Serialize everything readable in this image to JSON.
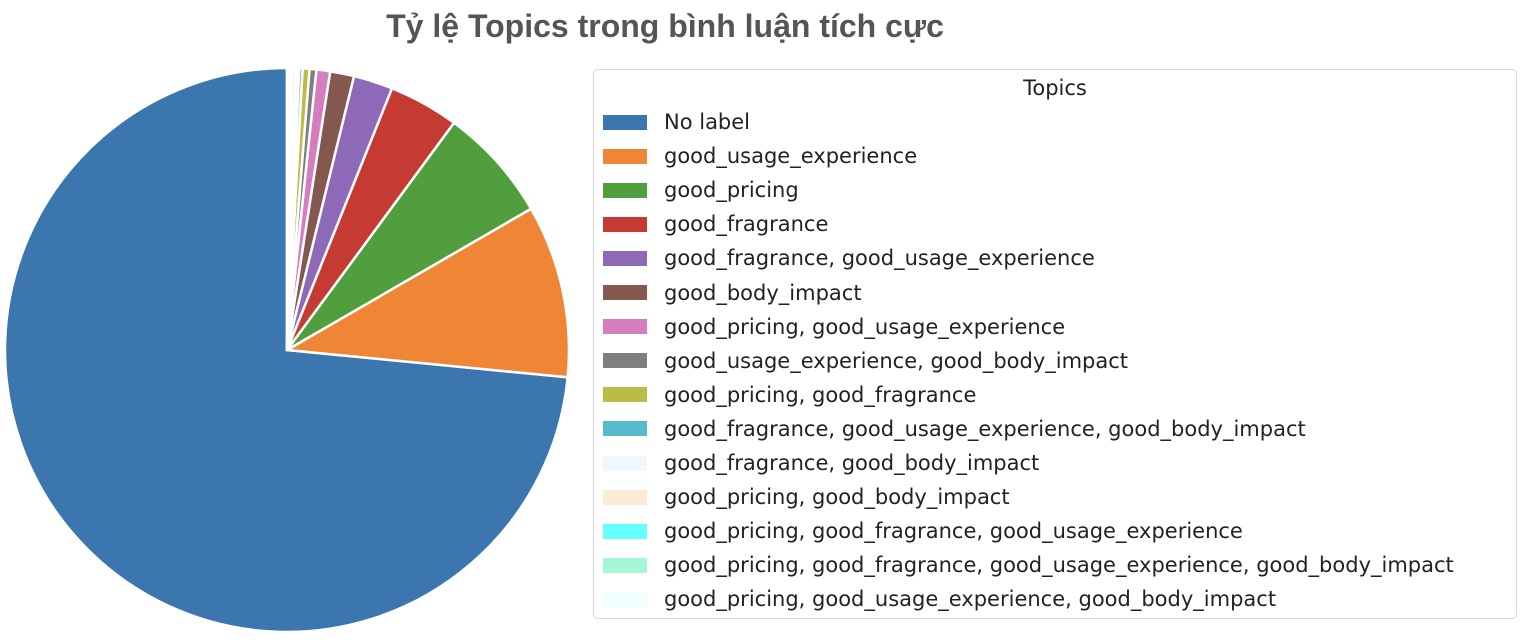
{
  "chart_data": {
    "type": "pie",
    "title": "Tỷ lệ Topics trong bình luận tích cực",
    "legend_title": "Topics",
    "legend_position": "right",
    "start_angle_deg": 90,
    "direction": "counterclockwise",
    "slices": [
      {
        "label": "No label",
        "value": 75.0,
        "color": "#3b76af"
      },
      {
        "label": "good_usage_experience",
        "value": 10.1,
        "color": "#ef8636"
      },
      {
        "label": "good_pricing",
        "value": 6.7,
        "color": "#519e3e"
      },
      {
        "label": "good_fragrance",
        "value": 4.1,
        "color": "#c53a32"
      },
      {
        "label": "good_fragrance, good_usage_experience",
        "value": 2.3,
        "color": "#8d69b8"
      },
      {
        "label": "good_body_impact",
        "value": 1.4,
        "color": "#84584e"
      },
      {
        "label": "good_pricing, good_usage_experience",
        "value": 0.8,
        "color": "#d57dbe"
      },
      {
        "label": "good_usage_experience, good_body_impact",
        "value": 0.4,
        "color": "#7f7f7f"
      },
      {
        "label": "good_pricing, good_fragrance",
        "value": 0.4,
        "color": "#bcbc45"
      },
      {
        "label": "good_fragrance, good_usage_experience, good_body_impact",
        "value": 0.2,
        "color": "#58bbcc"
      },
      {
        "label": "good_fragrance, good_body_impact",
        "value": 0.2,
        "color": "#f0f8ff"
      },
      {
        "label": "good_pricing, good_body_impact",
        "value": 0.2,
        "color": "#faebd7"
      },
      {
        "label": "good_pricing, good_fragrance, good_usage_experience",
        "value": 0.1,
        "color": "#66ffff"
      },
      {
        "label": "good_pricing, good_fragrance, good_usage_experience, good_body_impact",
        "value": 0.1,
        "color": "#a6f5d4"
      },
      {
        "label": "good_pricing, good_usage_experience, good_body_impact",
        "value": 0.1,
        "color": "#f0ffff"
      }
    ]
  }
}
